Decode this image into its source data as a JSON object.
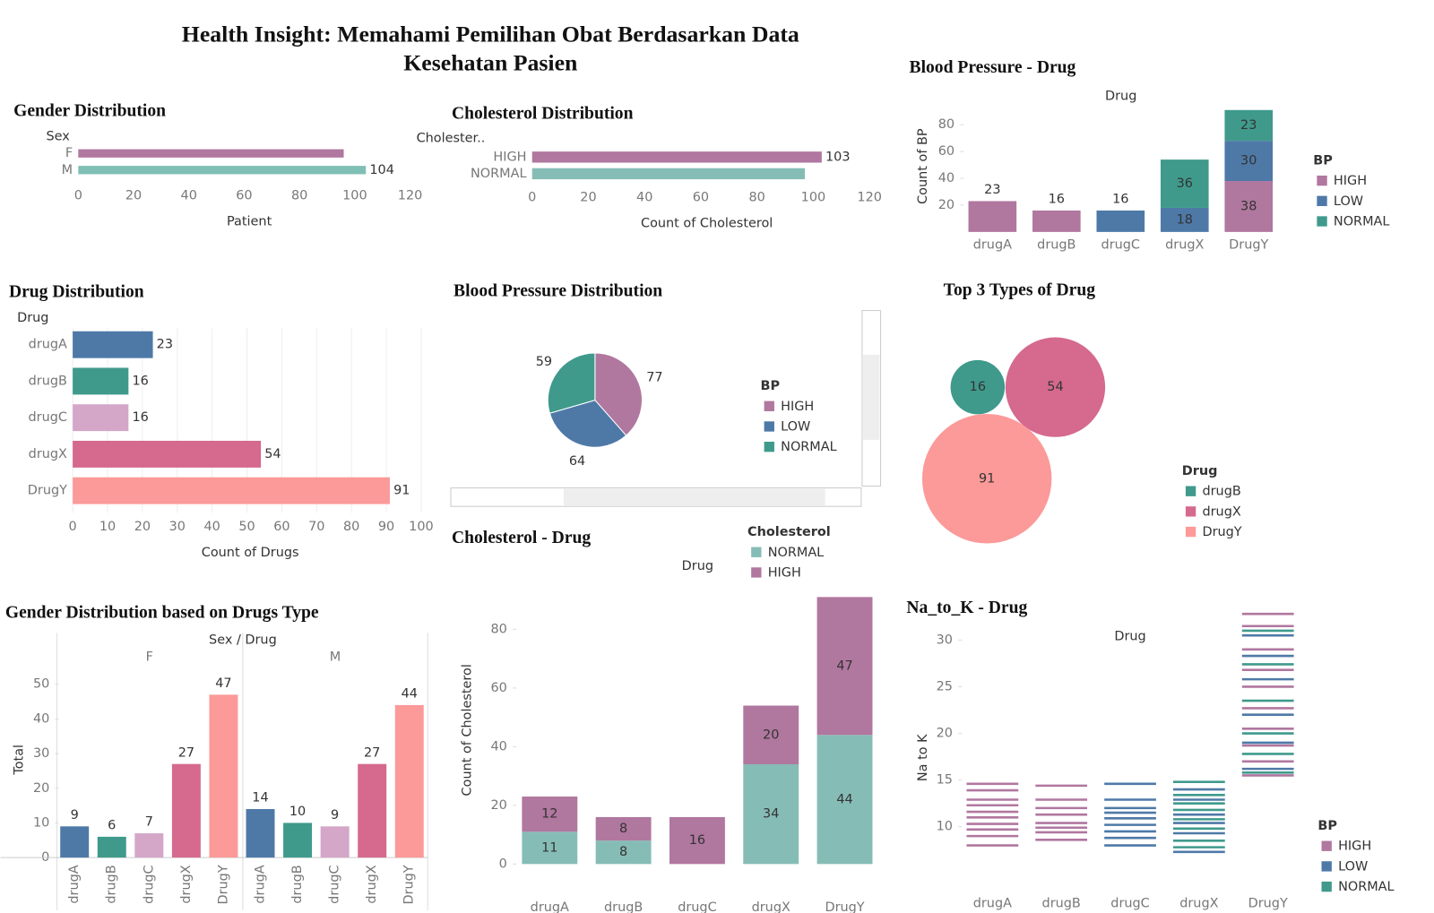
{
  "title": "Health Insight: Memahami Pemilihan Obat Berdasarkan Data Kesehatan Pasien",
  "chart_data": [
    {
      "type": "bar",
      "orientation": "horizontal",
      "title": "Gender Distribution",
      "axis_header": "Sex",
      "x_label": "Patient",
      "categories": [
        "F",
        "M"
      ],
      "values": [
        96,
        104
      ],
      "value_labels": [
        null,
        "104"
      ],
      "colors": [
        "#b0779f",
        "#7fbfb5"
      ],
      "xlim": [
        0,
        120
      ],
      "xticks": [
        0,
        20,
        40,
        60,
        80,
        100,
        120
      ],
      "grid": false
    },
    {
      "type": "bar",
      "orientation": "horizontal",
      "title": "Cholesterol Distribution",
      "axis_header": "Cholester..",
      "x_label": "Count of Cholesterol",
      "categories": [
        "HIGH",
        "NORMAL"
      ],
      "values": [
        103,
        97
      ],
      "value_labels": [
        "103",
        null
      ],
      "colors": [
        "#b0779f",
        "#86bcb6"
      ],
      "xlim": [
        0,
        120
      ],
      "xticks": [
        0,
        20,
        40,
        60,
        80,
        100,
        120
      ],
      "grid": false
    },
    {
      "type": "stacked_bar",
      "title": "Blood Pressure - Drug",
      "axis_header": "Drug",
      "y_label": "Count of BP",
      "legend_title": "BP",
      "categories": [
        "drugA",
        "drugB",
        "drugC",
        "drugX",
        "DrugY"
      ],
      "series": [
        {
          "name": "HIGH",
          "color": "#b0779f",
          "values": [
            23,
            16,
            null,
            null,
            38
          ]
        },
        {
          "name": "LOW",
          "color": "#4e79a7",
          "values": [
            null,
            null,
            16,
            18,
            30
          ]
        },
        {
          "name": "NORMAL",
          "color": "#3f9a8c",
          "values": [
            null,
            null,
            null,
            36,
            23
          ]
        }
      ],
      "ylim": [
        0,
        90
      ],
      "yticks": [
        20,
        40,
        60,
        80
      ]
    },
    {
      "type": "bar",
      "orientation": "horizontal",
      "title": "Drug Distribution",
      "axis_header": "Drug",
      "x_label": "Count of Drugs",
      "categories": [
        "drugA",
        "drugB",
        "drugC",
        "drugX",
        "DrugY"
      ],
      "values": [
        23,
        16,
        16,
        54,
        91
      ],
      "colors": [
        "#4e79a7",
        "#3f9a8c",
        "#d4a6c8",
        "#d5698e",
        "#fb9a99"
      ],
      "xlim": [
        0,
        100
      ],
      "xticks": [
        0,
        10,
        20,
        30,
        40,
        50,
        60,
        70,
        80,
        90,
        100
      ],
      "grid": true
    },
    {
      "type": "pie",
      "title": "Blood Pressure Distribution",
      "legend_title": "BP",
      "categories": [
        "HIGH",
        "LOW",
        "NORMAL"
      ],
      "values": [
        77,
        64,
        59
      ],
      "colors": [
        "#b0779f",
        "#4e79a7",
        "#3f9a8c"
      ]
    },
    {
      "type": "bubble",
      "title": "Top 3 Types of Drug",
      "legend_title": "Drug",
      "categories": [
        "drugB",
        "drugX",
        "DrugY"
      ],
      "values": [
        16,
        54,
        91
      ],
      "colors": [
        "#3f9a8c",
        "#d5698e",
        "#fb9a99"
      ]
    },
    {
      "type": "grouped_bar",
      "title": "Gender Distribution based on Drugs Type",
      "axis_header": "Sex / Drug",
      "y_label": "Total",
      "categories": [
        "drugA",
        "drugB",
        "drugC",
        "drugX",
        "DrugY"
      ],
      "colors": [
        "#4e79a7",
        "#3f9a8c",
        "#d4a6c8",
        "#d5698e",
        "#fb9a99"
      ],
      "series": [
        {
          "name": "F",
          "values": [
            9,
            6,
            7,
            27,
            47
          ]
        },
        {
          "name": "M",
          "values": [
            14,
            10,
            9,
            27,
            44
          ]
        }
      ],
      "ylim": [
        0,
        55
      ],
      "yticks": [
        0,
        10,
        20,
        30,
        40,
        50
      ]
    },
    {
      "type": "stacked_bar",
      "title": "Cholesterol - Drug",
      "axis_header": "Drug",
      "y_label": "Count of Cholesterol",
      "legend_title": "Cholesterol",
      "categories": [
        "drugA",
        "drugB",
        "drugC",
        "drugX",
        "DrugY"
      ],
      "series": [
        {
          "name": "NORMAL",
          "color": "#86bcb6",
          "values": [
            11,
            8,
            null,
            34,
            44
          ]
        },
        {
          "name": "HIGH",
          "color": "#b0779f",
          "values": [
            12,
            8,
            16,
            20,
            47
          ]
        }
      ],
      "ylim": [
        0,
        91
      ],
      "yticks": [
        0,
        20,
        40,
        60,
        80
      ]
    },
    {
      "type": "strip",
      "title": "Na_to_K - Drug",
      "axis_header": "Drug",
      "y_label": "Na to K",
      "legend_title": "BP",
      "categories": [
        "drugA",
        "drugB",
        "drugC",
        "drugX",
        "DrugY"
      ],
      "series": [
        {
          "name": "HIGH",
          "color": "#b0779f",
          "drugs": [
            "drugA",
            "drugA",
            "drugA",
            "drugA",
            "drugA",
            "drugA",
            "drugA",
            "drugA",
            "drugA",
            "drugA",
            "drugB",
            "drugB",
            "drugB",
            "drugB",
            "drugB",
            "drugB",
            "drugB",
            "drugB",
            "DrugY",
            "DrugY",
            "DrugY",
            "DrugY",
            "DrugY",
            "DrugY",
            "DrugY",
            "DrugY",
            "DrugY",
            "DrugY"
          ],
          "values": [
            8.0,
            9.0,
            9.7,
            10.3,
            11.0,
            11.6,
            12.3,
            12.9,
            13.9,
            14.6,
            8.6,
            9.4,
            9.9,
            10.4,
            11.3,
            12.0,
            12.9,
            14.4,
            15.5,
            17.0,
            18.7,
            20.5,
            22.7,
            25.0,
            26.8,
            29.0,
            31.5,
            32.8
          ]
        },
        {
          "name": "LOW",
          "color": "#4e79a7",
          "drugs": [
            "drugC",
            "drugC",
            "drugC",
            "drugC",
            "drugC",
            "drugC",
            "drugC",
            "drugC",
            "drugC",
            "drugX",
            "drugX",
            "drugX",
            "drugX",
            "drugX",
            "drugX",
            "DrugY",
            "DrugY",
            "DrugY",
            "DrugY",
            "DrugY",
            "DrugY"
          ],
          "values": [
            8.0,
            8.8,
            9.5,
            10.2,
            10.9,
            11.5,
            12.0,
            12.9,
            14.6,
            7.3,
            9.3,
            10.4,
            11.3,
            12.9,
            14.0,
            16.2,
            19.0,
            22.0,
            25.8,
            28.3,
            30.5
          ]
        },
        {
          "name": "NORMAL",
          "color": "#3f9a8c",
          "drugs": [
            "drugX",
            "drugX",
            "drugX",
            "drugX",
            "drugX",
            "drugX",
            "drugX",
            "drugX",
            "DrugY",
            "DrugY",
            "DrugY",
            "DrugY",
            "DrugY",
            "DrugY"
          ],
          "values": [
            7.8,
            8.5,
            9.8,
            10.8,
            11.8,
            12.5,
            13.4,
            14.8,
            15.8,
            17.8,
            20.0,
            23.5,
            27.4,
            31.0
          ]
        }
      ],
      "ylim": [
        6.5,
        33
      ],
      "yticks": [
        10,
        15,
        20,
        25,
        30
      ]
    }
  ]
}
